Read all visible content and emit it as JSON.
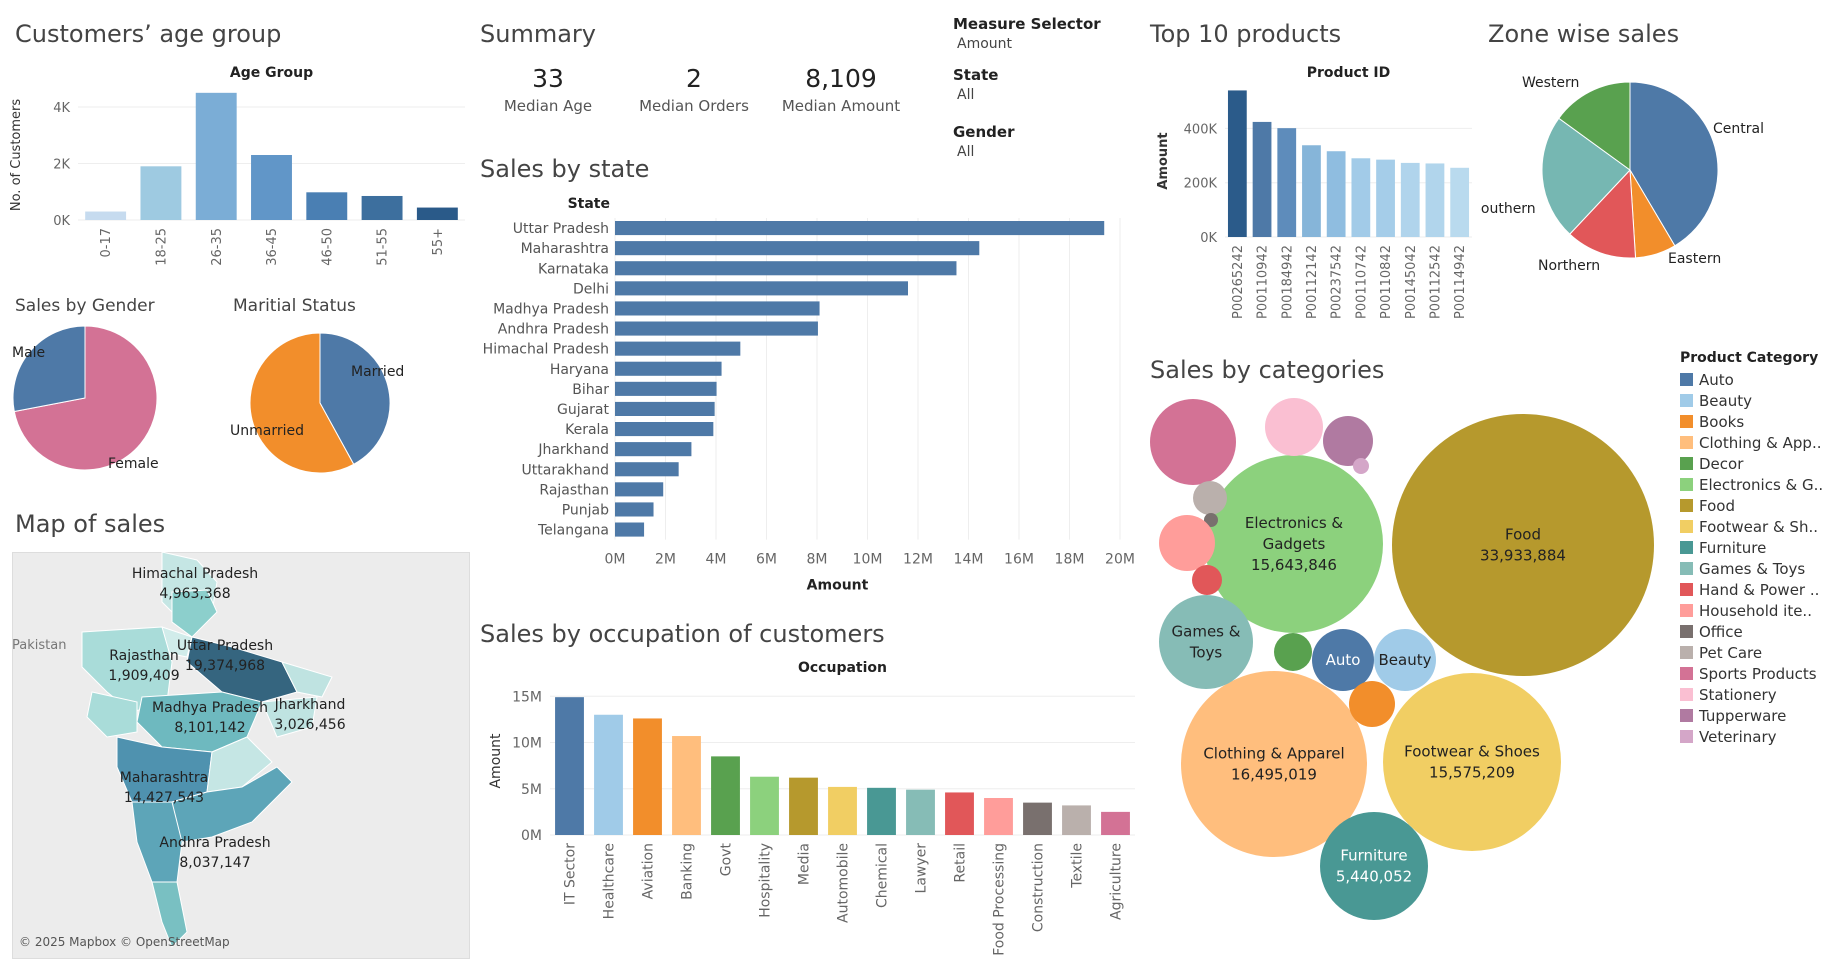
{
  "titles": {
    "age_group": "Customers’ age group",
    "summary": "Summary",
    "sales_by_state": "Sales by state",
    "top10": "Top 10 products",
    "zone": "Zone wise sales",
    "gender": "Sales by Gender",
    "marital": "Maritial Status",
    "map": "Map of sales",
    "occupation": "Sales by occupation of customers",
    "categories": "Sales by categories"
  },
  "summary": {
    "median_age": "33",
    "median_age_label": "Median Age",
    "median_orders": "2",
    "median_orders_label": "Median Orders",
    "median_amount": "8,109",
    "median_amount_label": "Median Amount"
  },
  "filters": {
    "measure_label": "Measure Selector",
    "measure_value": "Amount",
    "state_label": "State",
    "state_value": "All",
    "gender_label": "Gender",
    "gender_value": "All"
  },
  "map": {
    "credit": "© 2025 Mapbox © OpenStreetMap",
    "country_label": "Pakistan"
  },
  "legend": {
    "title": "Product Category"
  },
  "colors": {
    "Auto": "#4e79a7",
    "Beauty": "#a0cbe8",
    "Books": "#f28e2b",
    "Clothing & Apparel": "#ffbe7d",
    "Decor": "#59a14f",
    "Electronics & Gadgets": "#8cd17d",
    "Food": "#b6992d",
    "Footwear & Shoes": "#f1ce63",
    "Furniture": "#499894",
    "Games & Toys": "#86bcb6",
    "Hand & Power Tools": "#e15759",
    "Household items": "#ff9d9a",
    "Office": "#79706e",
    "Pet Care": "#bab0ac",
    "Sports Products": "#d37295",
    "Stationery": "#fabfd2",
    "Tupperware": "#b07aa1",
    "Veterinary": "#d4a6c8"
  },
  "chart_data": [
    {
      "id": "age",
      "type": "bar",
      "title": "Age Group",
      "ylabel": "No. of Customers",
      "categories": [
        "0-17",
        "18-25",
        "26-35",
        "36-45",
        "46-50",
        "51-55",
        "55+"
      ],
      "values": [
        300,
        1900,
        4500,
        2300,
        980,
        850,
        440
      ],
      "ylim": [
        0,
        4600
      ],
      "yticks": [
        "0K",
        "2K",
        "4K"
      ],
      "colors": [
        "#c6dbef",
        "#9ecae1",
        "#7badd6",
        "#6196c8",
        "#4a7fb3",
        "#3d6f9e",
        "#2a5a89"
      ]
    },
    {
      "id": "state",
      "type": "bar",
      "title": "State",
      "xlabel": "Amount",
      "categories": [
        "Uttar Pradesh",
        "Maharashtra",
        "Karnataka",
        "Delhi",
        "Madhya Pradesh",
        "Andhra Pradesh",
        "Himachal Pradesh",
        "Haryana",
        "Bihar",
        "Gujarat",
        "Kerala",
        "Jharkhand",
        "Uttarakhand",
        "Rajasthan",
        "Punjab",
        "Telangana"
      ],
      "values": [
        19374968,
        14427543,
        13523540,
        11603820,
        8101142,
        8037147,
        4963368,
        4220175,
        4022757,
        3946083,
        3894491,
        3026456,
        2520944,
        1909409,
        1525800,
        1151490
      ],
      "xticks": [
        "0M",
        "2M",
        "4M",
        "6M",
        "8M",
        "10M",
        "12M",
        "14M",
        "16M",
        "18M",
        "20M"
      ],
      "xlim": [
        0,
        20000000
      ],
      "color": "#4e79a7"
    },
    {
      "id": "top10",
      "type": "bar",
      "title": "Product ID",
      "ylabel": "Amount",
      "categories": [
        "P00265242",
        "P00110942",
        "P00184942",
        "P00112142",
        "P00237542",
        "P00110742",
        "P00110842",
        "P00145042",
        "P00112542",
        "P00114942"
      ],
      "values": [
        540000,
        424000,
        401000,
        338000,
        316000,
        290000,
        285000,
        273000,
        271000,
        255000
      ],
      "ylim": [
        0,
        560000
      ],
      "yticks": [
        "0K",
        "200K",
        "400K"
      ],
      "colors": [
        "#2b5b8a",
        "#4e79a7",
        "#5e8cbb",
        "#86b5d9",
        "#8fbde0",
        "#a2cbe8",
        "#a5cde9",
        "#b0d4ec",
        "#b1d5ec",
        "#b9daee"
      ]
    },
    {
      "id": "zone",
      "type": "pie",
      "categories": [
        "Central",
        "Eastern",
        "Northern",
        "Southern",
        "Western"
      ],
      "values": [
        41.5,
        7.5,
        13.0,
        23.0,
        15.0
      ],
      "colors": [
        "#4e79a7",
        "#f28e2b",
        "#e15759",
        "#76b7b2",
        "#59a14f"
      ]
    },
    {
      "id": "gender",
      "type": "pie",
      "categories": [
        "Female",
        "Male"
      ],
      "values": [
        72,
        28
      ],
      "colors": [
        "#d37295",
        "#4e79a7"
      ]
    },
    {
      "id": "marital",
      "type": "pie",
      "categories": [
        "Married",
        "Unmarried"
      ],
      "values": [
        42,
        58
      ],
      "colors": [
        "#4e79a7",
        "#f28e2b"
      ]
    },
    {
      "id": "occupation",
      "type": "bar",
      "title": "Occupation",
      "ylabel": "Amount",
      "categories": [
        "IT Sector",
        "Healthcare",
        "Aviation",
        "Banking",
        "Govt",
        "Hospitality",
        "Media",
        "Automobile",
        "Chemical",
        "Lawyer",
        "Retail",
        "Food Processing",
        "Construction",
        "Textile",
        "Agriculture"
      ],
      "values": [
        14900000,
        13000000,
        12600000,
        10700000,
        8500000,
        6300000,
        6200000,
        5200000,
        5100000,
        4900000,
        4600000,
        4000000,
        3500000,
        3200000,
        2500000
      ],
      "ylim": [
        0,
        16000000
      ],
      "yticks": [
        "0M",
        "5M",
        "10M",
        "15M"
      ],
      "colors": [
        "#4e79a7",
        "#a0cbe8",
        "#f28e2b",
        "#ffbe7d",
        "#59a14f",
        "#8cd17d",
        "#b6992d",
        "#f1ce63",
        "#499894",
        "#86bcb6",
        "#e15759",
        "#ff9d9a",
        "#79706e",
        "#bab0ac",
        "#d37295"
      ]
    },
    {
      "id": "map",
      "type": "map",
      "labels": [
        {
          "state": "Himachal Pradesh",
          "value": "4,963,368"
        },
        {
          "state": "Uttar Pradesh",
          "value": "19,374,968"
        },
        {
          "state": "Rajasthan",
          "value": "1,909,409"
        },
        {
          "state": "Madhya Pradesh",
          "value": "8,101,142"
        },
        {
          "state": "Jharkhand",
          "value": "3,026,456"
        },
        {
          "state": "Maharashtra",
          "value": "14,427,543"
        },
        {
          "state": "Andhra Pradesh",
          "value": "8,037,147"
        }
      ]
    },
    {
      "id": "categories",
      "type": "bubble",
      "labeled": [
        {
          "category": "Food",
          "line1": "Food",
          "line2": "33,933,884"
        },
        {
          "category": "Electronics & Gadgets",
          "line1": "Electronics &",
          "line1b": "Gadgets",
          "line2": "15,643,846"
        },
        {
          "category": "Clothing & Apparel",
          "line1": "Clothing & Apparel",
          "line2": "16,495,019"
        },
        {
          "category": "Footwear & Shoes",
          "line1": "Footwear & Shoes",
          "line2": "15,575,209"
        },
        {
          "category": "Furniture",
          "line1": "Furniture",
          "line2": "5,440,052"
        },
        {
          "category": "Games & Toys",
          "line1": "Games &",
          "line1b": "Toys"
        },
        {
          "category": "Auto",
          "line1": "Auto"
        },
        {
          "category": "Beauty",
          "line1": "Beauty"
        }
      ],
      "legend": [
        "Auto",
        "Beauty",
        "Books",
        "Clothing & App..",
        "Decor",
        "Electronics & G..",
        "Food",
        "Footwear & Sh..",
        "Furniture",
        "Games & Toys",
        "Hand & Power ..",
        "Household ite..",
        "Office",
        "Pet Care",
        "Sports Products",
        "Stationery",
        "Tupperware",
        "Veterinary"
      ],
      "legend_colors": [
        "#4e79a7",
        "#a0cbe8",
        "#f28e2b",
        "#ffbe7d",
        "#59a14f",
        "#8cd17d",
        "#b6992d",
        "#f1ce63",
        "#499894",
        "#86bcb6",
        "#e15759",
        "#ff9d9a",
        "#79706e",
        "#bab0ac",
        "#d37295",
        "#fabfd2",
        "#b07aa1",
        "#d4a6c8"
      ]
    }
  ]
}
